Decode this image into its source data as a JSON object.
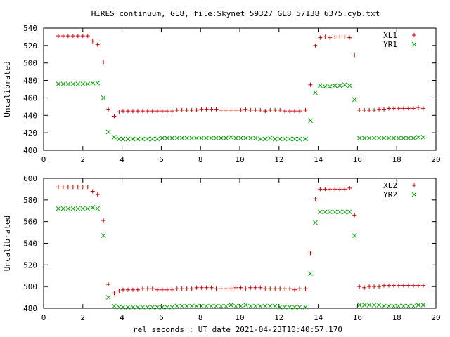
{
  "chart_data": [
    {
      "type": "scatter",
      "title": "HIRES continuum, GL8, file:Skynet_59327_GL8_57138_6375.cyb.txt",
      "xlabel": "",
      "ylabel": "Uncalibrated",
      "xlim": [
        0,
        20
      ],
      "ylim": [
        400,
        540
      ],
      "xticks": [
        0,
        2,
        4,
        6,
        8,
        10,
        12,
        14,
        16,
        18,
        20
      ],
      "yticks": [
        400,
        420,
        440,
        460,
        480,
        500,
        520,
        540
      ],
      "grid": false,
      "legend": "top-right",
      "series": [
        {
          "name": "XL1",
          "color": "#cc0000",
          "marker": "plus",
          "x": [
            0.75,
            1.0,
            1.25,
            1.5,
            1.75,
            2.0,
            2.25,
            2.5,
            2.75,
            3.05,
            3.3,
            3.6,
            3.85,
            4.05,
            4.3,
            4.55,
            4.8,
            5.05,
            5.3,
            5.55,
            5.8,
            6.05,
            6.3,
            6.55,
            6.8,
            7.05,
            7.3,
            7.55,
            7.8,
            8.05,
            8.3,
            8.55,
            8.8,
            9.05,
            9.3,
            9.55,
            9.8,
            10.05,
            10.3,
            10.55,
            10.8,
            11.05,
            11.3,
            11.55,
            11.8,
            12.05,
            12.3,
            12.55,
            12.8,
            13.05,
            13.35,
            13.6,
            13.85,
            14.1,
            14.35,
            14.6,
            14.85,
            15.1,
            15.35,
            15.6,
            15.85,
            16.1,
            16.35,
            16.6,
            16.85,
            17.1,
            17.35,
            17.6,
            17.85,
            18.1,
            18.35,
            18.6,
            18.85,
            19.1,
            19.35
          ],
          "y": [
            531,
            531,
            531,
            531,
            531,
            531,
            531,
            525,
            521,
            501,
            447,
            439,
            444,
            445,
            445,
            445,
            445,
            445,
            445,
            445,
            445,
            445,
            445,
            445,
            446,
            446,
            446,
            446,
            446,
            447,
            447,
            447,
            447,
            446,
            446,
            446,
            446,
            446,
            447,
            446,
            446,
            446,
            445,
            446,
            446,
            446,
            445,
            445,
            445,
            445,
            446,
            475,
            520,
            529,
            530,
            529,
            530,
            530,
            530,
            529,
            509,
            446,
            446,
            446,
            446,
            447,
            447,
            448,
            448,
            448,
            448,
            448,
            448,
            449,
            448
          ]
        },
        {
          "name": "YR1",
          "color": "#00a000",
          "marker": "cross",
          "x": [
            0.75,
            1.0,
            1.25,
            1.5,
            1.75,
            2.0,
            2.25,
            2.5,
            2.75,
            3.05,
            3.3,
            3.6,
            3.85,
            4.05,
            4.3,
            4.55,
            4.8,
            5.05,
            5.3,
            5.55,
            5.8,
            6.05,
            6.3,
            6.55,
            6.8,
            7.05,
            7.3,
            7.55,
            7.8,
            8.05,
            8.3,
            8.55,
            8.8,
            9.05,
            9.3,
            9.55,
            9.8,
            10.05,
            10.3,
            10.55,
            10.8,
            11.05,
            11.3,
            11.55,
            11.8,
            12.05,
            12.3,
            12.55,
            12.8,
            13.05,
            13.35,
            13.6,
            13.85,
            14.1,
            14.35,
            14.6,
            14.85,
            15.1,
            15.35,
            15.6,
            15.85,
            16.1,
            16.35,
            16.6,
            16.85,
            17.1,
            17.35,
            17.6,
            17.85,
            18.1,
            18.35,
            18.6,
            18.85,
            19.1,
            19.35
          ],
          "y": [
            476,
            476,
            476,
            476,
            476,
            476,
            476,
            477,
            477,
            460,
            421,
            415,
            413,
            413,
            413,
            413,
            413,
            413,
            413,
            413,
            413,
            414,
            414,
            414,
            414,
            414,
            414,
            414,
            414,
            414,
            414,
            414,
            414,
            414,
            414,
            415,
            414,
            414,
            414,
            414,
            414,
            413,
            413,
            414,
            413,
            413,
            413,
            413,
            413,
            413,
            413,
            434,
            466,
            474,
            473,
            473,
            474,
            474,
            475,
            474,
            458,
            414,
            414,
            414,
            414,
            414,
            414,
            414,
            414,
            414,
            414,
            414,
            414,
            415,
            415
          ]
        }
      ]
    },
    {
      "type": "scatter",
      "title": "",
      "xlabel": "rel seconds : UT date 2021-04-23T10:40:57.170",
      "ylabel": "Uncalibrated",
      "xlim": [
        0,
        20
      ],
      "ylim": [
        480,
        600
      ],
      "xticks": [
        0,
        2,
        4,
        6,
        8,
        10,
        12,
        14,
        16,
        18,
        20
      ],
      "yticks": [
        480,
        500,
        520,
        540,
        560,
        580,
        600
      ],
      "grid": false,
      "legend": "top-right",
      "series": [
        {
          "name": "XL2",
          "color": "#cc0000",
          "marker": "plus",
          "x": [
            0.75,
            1.0,
            1.25,
            1.5,
            1.75,
            2.0,
            2.25,
            2.5,
            2.75,
            3.05,
            3.3,
            3.6,
            3.85,
            4.05,
            4.3,
            4.55,
            4.8,
            5.05,
            5.3,
            5.55,
            5.8,
            6.05,
            6.3,
            6.55,
            6.8,
            7.05,
            7.3,
            7.55,
            7.8,
            8.05,
            8.3,
            8.55,
            8.8,
            9.05,
            9.3,
            9.55,
            9.8,
            10.05,
            10.3,
            10.55,
            10.8,
            11.05,
            11.3,
            11.55,
            11.8,
            12.05,
            12.3,
            12.55,
            12.8,
            13.05,
            13.35,
            13.6,
            13.85,
            14.1,
            14.35,
            14.6,
            14.85,
            15.1,
            15.35,
            15.6,
            15.85,
            16.1,
            16.35,
            16.6,
            16.85,
            17.1,
            17.35,
            17.6,
            17.85,
            18.1,
            18.35,
            18.6,
            18.85,
            19.1,
            19.35
          ],
          "y": [
            592,
            592,
            592,
            592,
            592,
            592,
            592,
            588,
            585,
            561,
            502,
            494,
            496,
            497,
            497,
            497,
            497,
            498,
            498,
            498,
            497,
            497,
            497,
            497,
            498,
            498,
            498,
            498,
            499,
            499,
            499,
            499,
            498,
            498,
            498,
            498,
            499,
            499,
            498,
            499,
            499,
            499,
            498,
            498,
            498,
            498,
            498,
            498,
            497,
            498,
            498,
            531,
            581,
            590,
            590,
            590,
            590,
            590,
            590,
            591,
            566,
            500,
            499,
            500,
            500,
            500,
            501,
            501,
            501,
            501,
            501,
            501,
            501,
            501,
            501
          ]
        },
        {
          "name": "YR2",
          "color": "#00a000",
          "marker": "cross",
          "x": [
            0.75,
            1.0,
            1.25,
            1.5,
            1.75,
            2.0,
            2.25,
            2.5,
            2.75,
            3.05,
            3.3,
            3.6,
            3.85,
            4.05,
            4.3,
            4.55,
            4.8,
            5.05,
            5.3,
            5.55,
            5.8,
            6.05,
            6.3,
            6.55,
            6.8,
            7.05,
            7.3,
            7.55,
            7.8,
            8.05,
            8.3,
            8.55,
            8.8,
            9.05,
            9.3,
            9.55,
            9.8,
            10.05,
            10.3,
            10.55,
            10.8,
            11.05,
            11.3,
            11.55,
            11.8,
            12.05,
            12.3,
            12.55,
            12.8,
            13.05,
            13.35,
            13.6,
            13.85,
            14.1,
            14.35,
            14.6,
            14.85,
            15.1,
            15.35,
            15.6,
            15.85,
            16.1,
            16.35,
            16.6,
            16.85,
            17.1,
            17.35,
            17.6,
            17.85,
            18.1,
            18.35,
            18.6,
            18.85,
            19.1,
            19.35
          ],
          "y": [
            572,
            572,
            572,
            572,
            572,
            572,
            572,
            573,
            572,
            547,
            490,
            482,
            481,
            481,
            481,
            481,
            481,
            481,
            481,
            481,
            481,
            481,
            481,
            481,
            482,
            482,
            482,
            482,
            482,
            482,
            482,
            482,
            482,
            482,
            482,
            483,
            482,
            482,
            483,
            482,
            482,
            482,
            482,
            482,
            482,
            481,
            481,
            481,
            481,
            481,
            481,
            512,
            559,
            569,
            569,
            569,
            569,
            569,
            569,
            569,
            547,
            483,
            483,
            483,
            483,
            483,
            482,
            482,
            482,
            482,
            482,
            482,
            482,
            483,
            483
          ]
        }
      ]
    }
  ]
}
